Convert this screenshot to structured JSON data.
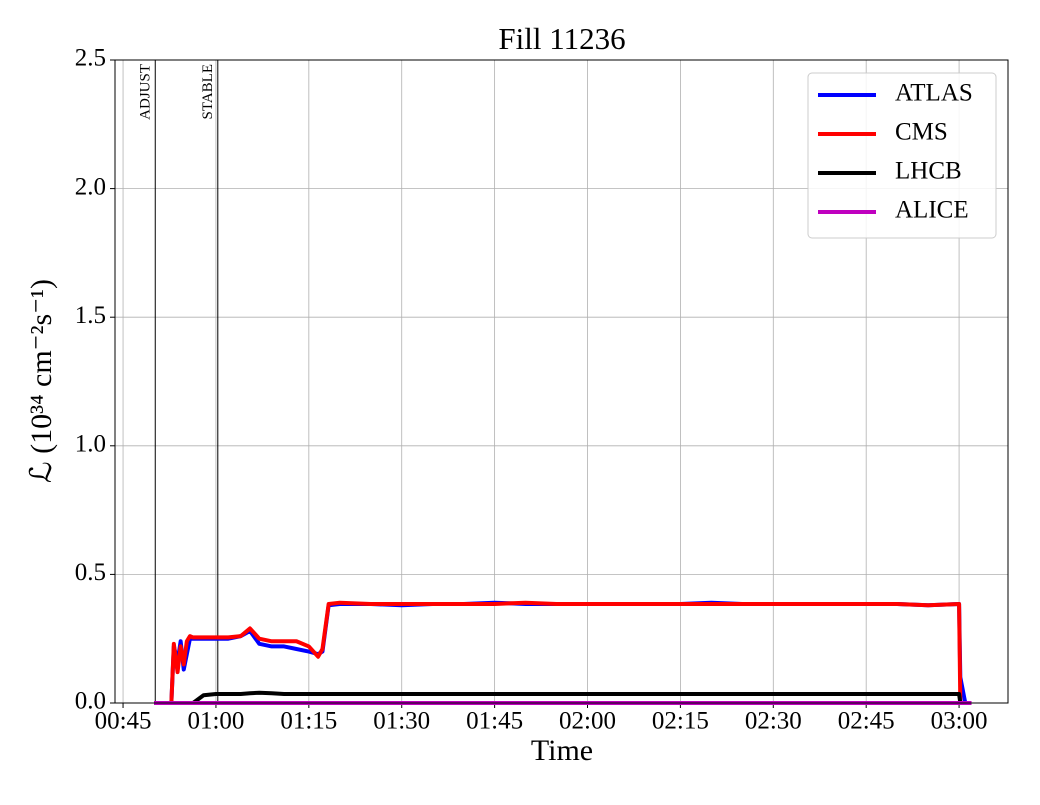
{
  "chart_data": {
    "type": "line",
    "title": "Fill 11236",
    "x_label": "Time",
    "y_label": "ℒ (10³⁴ cm⁻²s⁻¹)",
    "x": [
      50,
      52.8,
      53.2,
      53.8,
      54.3,
      54.8,
      55.3,
      55.8,
      56.3,
      58,
      60,
      62,
      64,
      65.5,
      67,
      69,
      71,
      73,
      75,
      76.5,
      77.2,
      78.2,
      80,
      85,
      90,
      95,
      100,
      105,
      110,
      115,
      120,
      125,
      130,
      135,
      140,
      145,
      150,
      155,
      160,
      165,
      170,
      175,
      180,
      180.2,
      181,
      182
    ],
    "series": [
      {
        "name": "ATLAS",
        "color": "#0000ff",
        "values": [
          0,
          0,
          0.22,
          0.16,
          0.24,
          0.13,
          0.19,
          0.25,
          0.25,
          0.25,
          0.25,
          0.25,
          0.26,
          0.28,
          0.23,
          0.22,
          0.22,
          0.21,
          0.2,
          0.19,
          0.2,
          0.38,
          0.385,
          0.385,
          0.38,
          0.385,
          0.385,
          0.39,
          0.385,
          0.385,
          0.385,
          0.385,
          0.385,
          0.385,
          0.39,
          0.385,
          0.385,
          0.385,
          0.385,
          0.385,
          0.385,
          0.38,
          0.385,
          0.1,
          0,
          0
        ]
      },
      {
        "name": "CMS",
        "color": "#ff0000",
        "values": [
          0,
          0,
          0.23,
          0.12,
          0.22,
          0.15,
          0.24,
          0.26,
          0.255,
          0.255,
          0.255,
          0.255,
          0.26,
          0.29,
          0.25,
          0.24,
          0.24,
          0.24,
          0.22,
          0.18,
          0.21,
          0.385,
          0.39,
          0.385,
          0.385,
          0.385,
          0.385,
          0.385,
          0.39,
          0.385,
          0.385,
          0.385,
          0.385,
          0.385,
          0.385,
          0.385,
          0.385,
          0.385,
          0.385,
          0.385,
          0.385,
          0.38,
          0.385,
          0,
          0,
          0
        ]
      },
      {
        "name": "LHCB",
        "color": "#000000",
        "values": [
          0,
          0,
          0,
          0,
          0,
          0,
          0,
          0,
          0,
          0.03,
          0.035,
          0.035,
          0.035,
          0.038,
          0.04,
          0.038,
          0.035,
          0.035,
          0.035,
          0.035,
          0.035,
          0.035,
          0.035,
          0.035,
          0.035,
          0.035,
          0.035,
          0.035,
          0.035,
          0.035,
          0.035,
          0.035,
          0.035,
          0.035,
          0.035,
          0.035,
          0.035,
          0.035,
          0.035,
          0.035,
          0.035,
          0.035,
          0.035,
          0,
          0,
          0
        ]
      },
      {
        "name": "ALICE",
        "color": "#bf00bf",
        "values": [
          0,
          0,
          0,
          0,
          0,
          0,
          0,
          0,
          0,
          0,
          0,
          0,
          0,
          0,
          0,
          0,
          0,
          0,
          0,
          0,
          0,
          0,
          0,
          0,
          0,
          0,
          0,
          0,
          0,
          0,
          0,
          0,
          0,
          0,
          0,
          0,
          0,
          0,
          0,
          0,
          0,
          0,
          0,
          0,
          0,
          0
        ]
      }
    ],
    "markers": [
      {
        "label": "ADJUST",
        "x": 50.2
      },
      {
        "label": "STABLE",
        "x": 60.3
      }
    ],
    "xlim": [
      43.7,
      187.9
    ],
    "xticks": [
      {
        "value": 45,
        "label": "00:45"
      },
      {
        "value": 60,
        "label": "01:00"
      },
      {
        "value": 75,
        "label": "01:15"
      },
      {
        "value": 90,
        "label": "01:30"
      },
      {
        "value": 105,
        "label": "01:45"
      },
      {
        "value": 120,
        "label": "02:00"
      },
      {
        "value": 135,
        "label": "02:15"
      },
      {
        "value": 150,
        "label": "02:30"
      },
      {
        "value": 165,
        "label": "02:45"
      },
      {
        "value": 180,
        "label": "03:00"
      }
    ],
    "ylim": [
      0,
      2.5
    ],
    "yticks": [
      {
        "value": 0,
        "label": "0.0"
      },
      0.5,
      {
        "value": 1,
        "label": "1.0"
      },
      1.5,
      {
        "value": 2,
        "label": "2.0"
      },
      2.5
    ],
    "grid": true,
    "legend": "upper right"
  }
}
